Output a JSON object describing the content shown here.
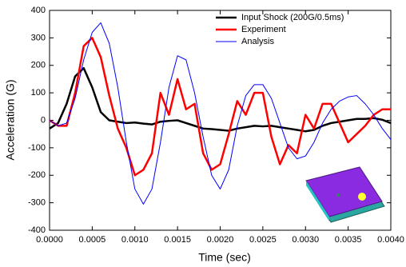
{
  "chart_data": {
    "type": "line",
    "xlabel": "Time (sec)",
    "ylabel": "Acceleration (G)",
    "x": [
      0,
      0.0001,
      0.0002,
      0.0003,
      0.0004,
      0.0005,
      0.0006,
      0.0007,
      0.0008,
      0.0009,
      0.001,
      0.0011,
      0.0012,
      0.0013,
      0.0014,
      0.0015,
      0.0016,
      0.0017,
      0.0018,
      0.0019,
      0.002,
      0.0021,
      0.0022,
      0.0023,
      0.0024,
      0.0025,
      0.0026,
      0.0027,
      0.0028,
      0.0029,
      0.003,
      0.0031,
      0.0032,
      0.0033,
      0.0034,
      0.0035,
      0.0036,
      0.0037,
      0.0038,
      0.0039,
      0.004
    ],
    "series": [
      {
        "name": "Input Shock (200G/0.5ms)",
        "color": "#000000",
        "width": 2.5,
        "values": [
          -30,
          -10,
          60,
          160,
          190,
          120,
          30,
          0,
          -5,
          -10,
          -8,
          -12,
          -15,
          -5,
          -2,
          0,
          -10,
          -20,
          -30,
          -32,
          -35,
          -38,
          -30,
          -25,
          -20,
          -22,
          -20,
          -25,
          -30,
          -35,
          -40,
          -35,
          -20,
          -10,
          -5,
          0,
          5,
          5,
          8,
          2,
          -10
        ]
      },
      {
        "name": "Experiment",
        "color": "#ff0000",
        "width": 2.5,
        "values": [
          0,
          -20,
          -20,
          100,
          270,
          300,
          230,
          90,
          -30,
          -100,
          -200,
          -180,
          -120,
          100,
          20,
          150,
          40,
          60,
          -120,
          -180,
          -160,
          -50,
          70,
          20,
          100,
          100,
          -60,
          -160,
          -90,
          -120,
          20,
          -30,
          60,
          60,
          -10,
          -80,
          -50,
          -20,
          20,
          40,
          40
        ]
      },
      {
        "name": "Analysis",
        "color": "#0000ff",
        "width": 1,
        "values": [
          0,
          -20,
          -10,
          80,
          220,
          320,
          355,
          280,
          120,
          -80,
          -250,
          -305,
          -250,
          -80,
          120,
          235,
          220,
          100,
          -60,
          -200,
          -250,
          -180,
          -20,
          90,
          130,
          130,
          80,
          -10,
          -100,
          -140,
          -130,
          -80,
          -10,
          40,
          70,
          85,
          90,
          60,
          20,
          -30,
          -70
        ]
      }
    ],
    "xlim": [
      0,
      0.004
    ],
    "xticks": [
      {
        "value": 0,
        "label": "0.0000"
      },
      {
        "value": 0.0005,
        "label": "0.0005"
      },
      {
        "value": 0.001,
        "label": "0.0010"
      },
      {
        "value": 0.0015,
        "label": "0.0015"
      },
      {
        "value": 0.002,
        "label": "0.0020"
      },
      {
        "value": 0.0025,
        "label": "0.0025"
      },
      {
        "value": 0.003,
        "label": "0.0030"
      },
      {
        "value": 0.0035,
        "label": "0.0035"
      },
      {
        "value": 0.004,
        "label": "0.0040"
      }
    ],
    "ylim": [
      -400,
      400
    ],
    "yticks": [
      -400,
      -300,
      -200,
      -100,
      0,
      100,
      200,
      300,
      400
    ],
    "legend": "upper right"
  }
}
